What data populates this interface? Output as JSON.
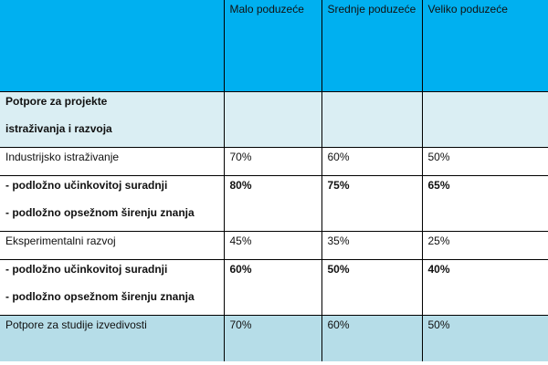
{
  "table": {
    "header": {
      "col0": "",
      "col1": "Malo poduzeće",
      "col2": "Srednje poduzeće",
      "col3": "Veliko poduzeće"
    },
    "section": {
      "line1": "Potpore za projekte",
      "line2": "istraživanja i razvoja"
    },
    "rows": [
      {
        "label": "Industrijsko istraživanje",
        "small": "70%",
        "medium": "60%",
        "large": "50%"
      },
      {
        "label1": "-  podložno učinkovitoj suradnji",
        "label2": "-  podložno opsežnom širenju znanja",
        "small": "80%",
        "medium": "75%",
        "large": "65%"
      },
      {
        "label": "Eksperimentalni razvoj",
        "small": "45%",
        "medium": "35%",
        "large": "25%"
      },
      {
        "label1": "-  podložno učinkovitoj suradnji",
        "label2": "-  podložno opsežnom širenju znanja",
        "small": "60%",
        "medium": "50%",
        "large": "40%"
      }
    ],
    "footer": {
      "label": "Potpore za studije izvedivosti",
      "small": "70%",
      "medium": "60%",
      "large": "50%"
    }
  },
  "colors": {
    "header_bg": "#00b0f0",
    "section_bg": "#daeef3",
    "footer_bg": "#b6dde8"
  }
}
